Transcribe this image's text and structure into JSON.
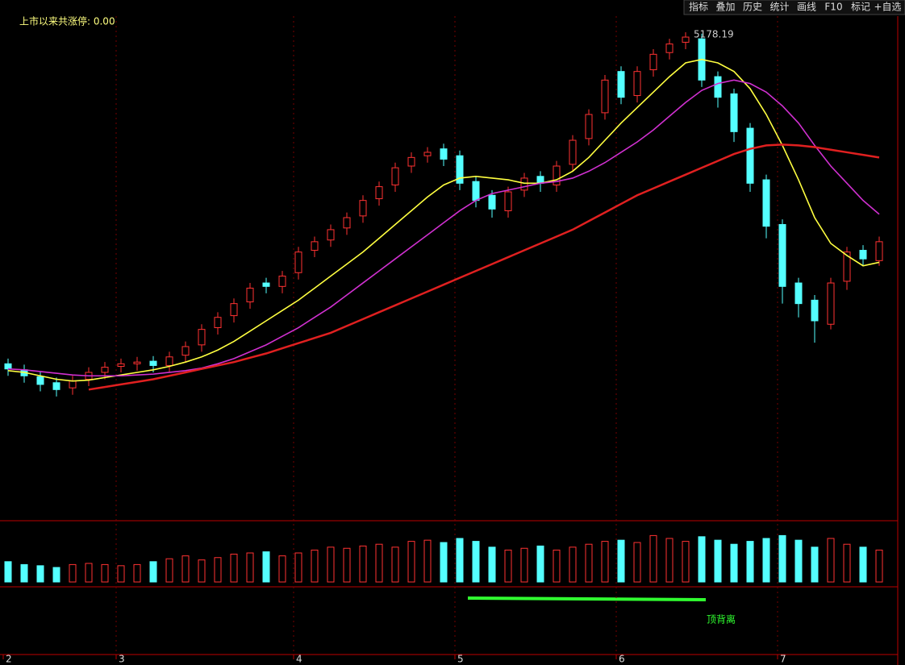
{
  "toolbar": [
    "指标",
    "叠加",
    "历史",
    "统计",
    "画线",
    "F10",
    "标记",
    "+自选"
  ],
  "chart_data": {
    "type": "candlestick",
    "title": "上市以来共涨停: 0.00",
    "annotation": "顶背离",
    "categories": [
      "2",
      null,
      null,
      null,
      null,
      null,
      null,
      "3",
      null,
      null,
      null,
      null,
      null,
      null,
      null,
      null,
      null,
      null,
      "4",
      null,
      null,
      null,
      null,
      null,
      null,
      null,
      null,
      null,
      "5",
      null,
      null,
      null,
      null,
      null,
      null,
      null,
      null,
      null,
      "6",
      null,
      null,
      null,
      null,
      null,
      null,
      null,
      null,
      null,
      "7",
      null,
      null,
      null,
      null,
      null,
      null
    ],
    "open": [
      3250,
      3215,
      3175,
      3140,
      3110,
      3160,
      3200,
      3235,
      3250,
      3265,
      3240,
      3300,
      3360,
      3460,
      3530,
      3610,
      3720,
      3700,
      3780,
      3910,
      3970,
      4040,
      4110,
      4210,
      4290,
      4400,
      4460,
      4500,
      4460,
      4310,
      4230,
      4140,
      4260,
      4340,
      4290,
      4410,
      4560,
      4710,
      4950,
      4810,
      4960,
      5060,
      5120,
      5140,
      4920,
      4820,
      4620,
      4320,
      4060,
      3720,
      3620,
      3480,
      3730,
      3910,
      3850
    ],
    "high": [
      3280,
      3245,
      3205,
      3170,
      3180,
      3230,
      3260,
      3280,
      3290,
      3295,
      3320,
      3380,
      3480,
      3550,
      3630,
      3720,
      3750,
      3790,
      3930,
      3990,
      4060,
      4130,
      4230,
      4310,
      4420,
      4480,
      4510,
      4530,
      4490,
      4340,
      4260,
      4280,
      4360,
      4370,
      4430,
      4580,
      4730,
      4930,
      4980,
      4980,
      5080,
      5140,
      5178.19,
      5170,
      4950,
      4850,
      4650,
      4350,
      4090,
      3750,
      3650,
      3750,
      3930,
      3940,
      3990
    ],
    "low": [
      3180,
      3140,
      3090,
      3060,
      3070,
      3120,
      3160,
      3200,
      3210,
      3200,
      3200,
      3260,
      3320,
      3420,
      3490,
      3570,
      3660,
      3660,
      3740,
      3870,
      3930,
      4000,
      4070,
      4170,
      4250,
      4360,
      4420,
      4400,
      4260,
      4160,
      4100,
      4100,
      4220,
      4250,
      4250,
      4370,
      4520,
      4670,
      4760,
      4770,
      4920,
      5020,
      5080,
      4860,
      4740,
      4540,
      4250,
      3980,
      3600,
      3520,
      3373,
      3450,
      3680,
      3820,
      3820
    ],
    "close": [
      3220,
      3180,
      3130,
      3100,
      3150,
      3200,
      3230,
      3250,
      3260,
      3240,
      3290,
      3350,
      3450,
      3520,
      3600,
      3690,
      3700,
      3760,
      3900,
      3960,
      4030,
      4100,
      4200,
      4280,
      4390,
      4450,
      4480,
      4440,
      4300,
      4200,
      4150,
      4250,
      4330,
      4300,
      4400,
      4550,
      4700,
      4900,
      4800,
      4950,
      5050,
      5110,
      5150,
      4900,
      4800,
      4600,
      4300,
      4050,
      3700,
      3600,
      3500,
      3720,
      3900,
      3860,
      3960
    ],
    "up_color": "#ff3232",
    "down_color": "#54ffff",
    "ylim": [
      2342,
      5272
    ],
    "series": [
      {
        "color": "#ffff40",
        "values": [
          3210,
          3200,
          3180,
          3160,
          3150,
          3155,
          3170,
          3185,
          3200,
          3215,
          3235,
          3260,
          3290,
          3330,
          3380,
          3440,
          3500,
          3560,
          3620,
          3690,
          3760,
          3830,
          3900,
          3980,
          4060,
          4140,
          4220,
          4290,
          4330,
          4340,
          4330,
          4320,
          4300,
          4300,
          4320,
          4370,
          4450,
          4550,
          4650,
          4740,
          4830,
          4920,
          5000,
          5020,
          5000,
          4950,
          4850,
          4700,
          4520,
          4320,
          4100,
          3950,
          3880,
          3820,
          3840
        ]
      },
      {
        "color": "#d030d0",
        "values": [
          3220,
          3215,
          3205,
          3195,
          3185,
          3180,
          3180,
          3180,
          3185,
          3190,
          3200,
          3210,
          3225,
          3250,
          3280,
          3320,
          3360,
          3410,
          3460,
          3520,
          3580,
          3650,
          3720,
          3790,
          3860,
          3930,
          4000,
          4070,
          4140,
          4200,
          4240,
          4260,
          4280,
          4300,
          4310,
          4330,
          4370,
          4420,
          4480,
          4540,
          4610,
          4690,
          4770,
          4840,
          4880,
          4900,
          4880,
          4830,
          4750,
          4650,
          4520,
          4400,
          4300,
          4200,
          4120
        ]
      },
      {
        "color": "#e02020",
        "values": [
          null,
          null,
          null,
          null,
          null,
          3100,
          3115,
          3130,
          3145,
          3160,
          3180,
          3200,
          3220,
          3240,
          3260,
          3285,
          3310,
          3340,
          3370,
          3400,
          3430,
          3470,
          3510,
          3550,
          3590,
          3630,
          3670,
          3710,
          3750,
          3790,
          3830,
          3870,
          3910,
          3950,
          3990,
          4030,
          4080,
          4130,
          4180,
          4230,
          4270,
          4310,
          4350,
          4390,
          4430,
          4470,
          4500,
          4520,
          4525,
          4520,
          4510,
          4495,
          4480,
          4465,
          4450
        ]
      }
    ],
    "volume": {
      "ylim": [
        0,
        100
      ],
      "values": [
        35,
        30,
        28,
        25,
        30,
        32,
        30,
        28,
        30,
        35,
        40,
        45,
        38,
        42,
        48,
        50,
        52,
        45,
        50,
        55,
        60,
        58,
        62,
        65,
        60,
        70,
        72,
        68,
        75,
        70,
        60,
        55,
        58,
        62,
        55,
        60,
        65,
        70,
        72,
        68,
        80,
        75,
        70,
        78,
        72,
        65,
        70,
        75,
        80,
        72,
        60,
        75,
        65,
        60,
        55
      ]
    }
  }
}
